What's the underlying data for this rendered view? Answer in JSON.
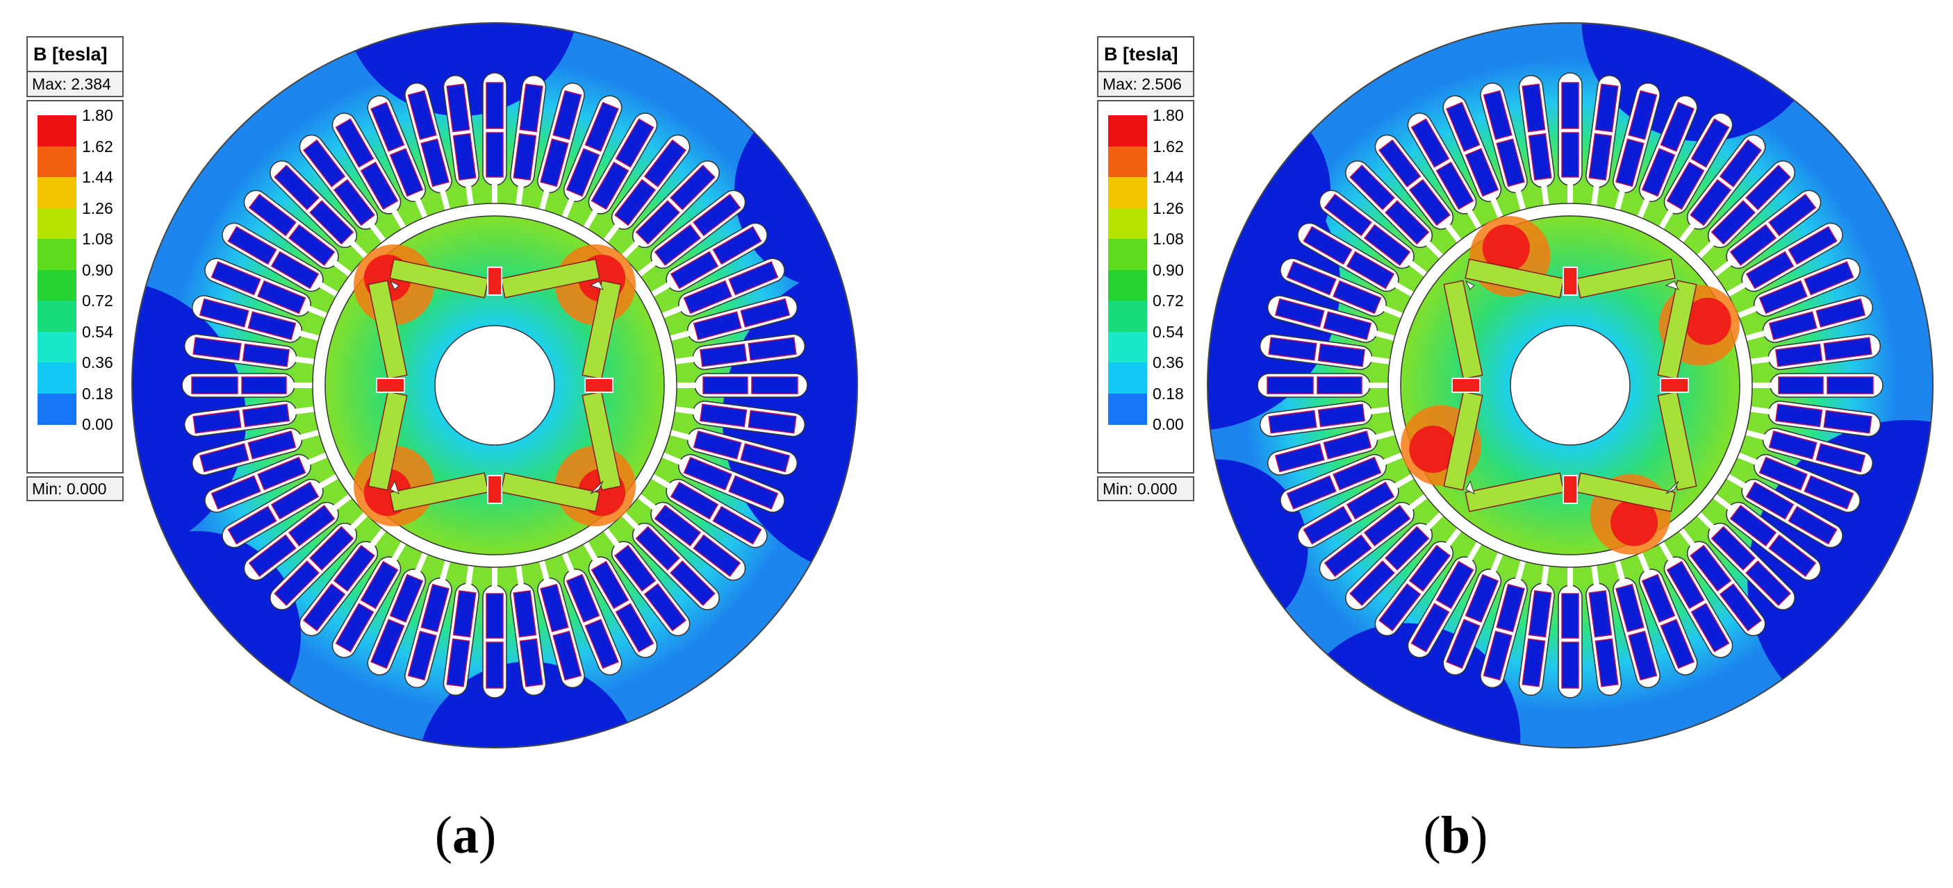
{
  "panels": [
    {
      "caption_letter": "a",
      "legend": {
        "title": "B [tesla]",
        "max_label": "Max: 2.384",
        "min_label": "Min: 0.000",
        "ticks": [
          "1.80",
          "1.62",
          "1.44",
          "1.26",
          "1.08",
          "0.90",
          "0.72",
          "0.54",
          "0.36",
          "0.18",
          "0.00"
        ]
      }
    },
    {
      "caption_letter": "b",
      "legend": {
        "title": "B [tesla]",
        "max_label": "Max: 2.506",
        "min_label": "Min: 0.000",
        "ticks": [
          "1.80",
          "1.62",
          "1.44",
          "1.26",
          "1.08",
          "0.90",
          "0.72",
          "0.54",
          "0.36",
          "0.18",
          "0.00"
        ]
      }
    }
  ],
  "colorbar_colors": [
    "#ee1111",
    "#f06010",
    "#f3c400",
    "#b6e400",
    "#5cdc1a",
    "#27d233",
    "#18dc7c",
    "#1ae8cc",
    "#12c8f4",
    "#1677f6",
    "#0a1de0"
  ],
  "flux_colors": {
    "yoke_outer": "#0a1fd8",
    "yoke_mid": "#1c86ee",
    "yoke_inner": "#22c7ee",
    "tooth": "#2ce28a",
    "tooth_hot": "#7ee02e",
    "rotor_body": "#2fdc74",
    "rotor_core": "#1ccff0",
    "saturation": "#ee2018",
    "orange": "#f47b12",
    "coil": "#0b1cd6",
    "magnet": "#a7e038"
  }
}
